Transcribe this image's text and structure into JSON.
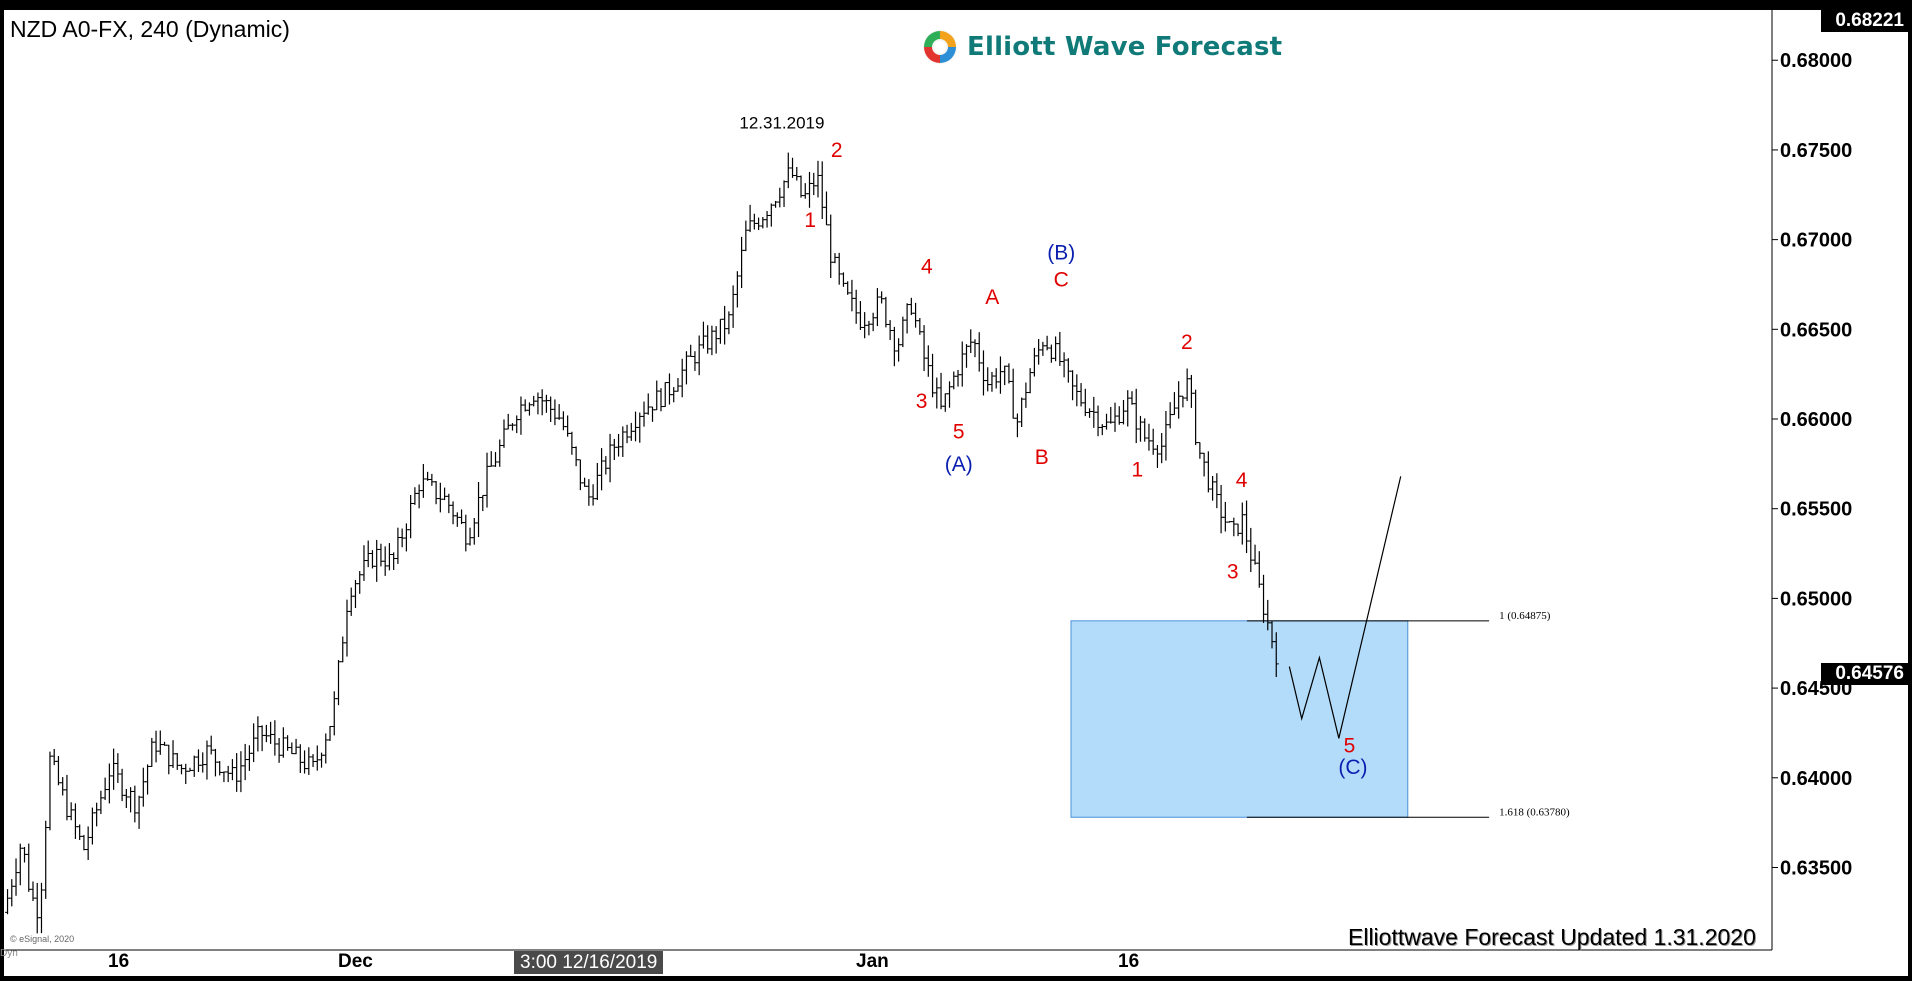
{
  "window": {
    "symbol_title": "NZD A0-FX, 240 (Dynamic)",
    "logo_text": "Elliott Wave Forecast",
    "updated_text": "Elliottwave Forecast Updated 1.31.2020",
    "copyright": "© eSignal, 2020",
    "dyn_label": "Dyn",
    "cursor_label": "3:00 12/16/2019",
    "colors": {
      "background": "#000000",
      "plot": "#ffffff",
      "bars": "#000000",
      "wave_red": "#e00000",
      "wave_blue": "#0a1fb0",
      "target_box": "#b3dcfb",
      "target_border": "#4a90d9"
    },
    "icons": [
      "logo-swirl-icon"
    ]
  },
  "chart_data": {
    "type": "ohlc",
    "timeframe": "240",
    "x_tick_labels": [
      "16",
      "Dec",
      "Jan",
      "16"
    ],
    "y_ticks": [
      0.635,
      0.64,
      0.645,
      0.65,
      0.655,
      0.66,
      0.665,
      0.67,
      0.675,
      0.68
    ],
    "y_tick_labels": [
      "0.63500",
      "0.64000",
      "0.64500",
      "0.65000",
      "0.65500",
      "0.66000",
      "0.66500",
      "0.67000",
      "0.67500",
      "0.68000"
    ],
    "ylim": [
      0.6304,
      0.6828
    ],
    "price_badges": [
      {
        "label": "0.68221",
        "value": 0.68221
      },
      {
        "label": "0.64576",
        "value": 0.64576
      }
    ],
    "date_annotation": {
      "text": "12.31.2019",
      "x": 0.44,
      "y": 0.6762
    },
    "price_path": [
      [
        0.0,
        0.6325
      ],
      [
        0.01,
        0.6365
      ],
      [
        0.015,
        0.6335
      ],
      [
        0.02,
        0.6325
      ],
      [
        0.026,
        0.641
      ],
      [
        0.035,
        0.6385
      ],
      [
        0.045,
        0.636
      ],
      [
        0.06,
        0.6405
      ],
      [
        0.075,
        0.6385
      ],
      [
        0.085,
        0.642
      ],
      [
        0.1,
        0.6405
      ],
      [
        0.115,
        0.6415
      ],
      [
        0.13,
        0.64
      ],
      [
        0.145,
        0.6425
      ],
      [
        0.16,
        0.6415
      ],
      [
        0.175,
        0.6405
      ],
      [
        0.186,
        0.6435
      ],
      [
        0.195,
        0.6505
      ],
      [
        0.21,
        0.6525
      ],
      [
        0.22,
        0.652
      ],
      [
        0.235,
        0.6565
      ],
      [
        0.25,
        0.6555
      ],
      [
        0.262,
        0.6535
      ],
      [
        0.272,
        0.6565
      ],
      [
        0.29,
        0.6605
      ],
      [
        0.3,
        0.6615
      ],
      [
        0.315,
        0.66
      ],
      [
        0.33,
        0.6555
      ],
      [
        0.345,
        0.6585
      ],
      [
        0.36,
        0.6605
      ],
      [
        0.375,
        0.6615
      ],
      [
        0.39,
        0.6635
      ],
      [
        0.41,
        0.6655
      ],
      [
        0.42,
        0.6705
      ],
      [
        0.43,
        0.6715
      ],
      [
        0.445,
        0.6738
      ],
      [
        0.452,
        0.6722
      ],
      [
        0.46,
        0.6735
      ],
      [
        0.468,
        0.669
      ],
      [
        0.475,
        0.667
      ],
      [
        0.485,
        0.6655
      ],
      [
        0.496,
        0.6665
      ],
      [
        0.505,
        0.664
      ],
      [
        0.513,
        0.6665
      ],
      [
        0.52,
        0.6635
      ],
      [
        0.53,
        0.6605
      ],
      [
        0.54,
        0.663
      ],
      [
        0.548,
        0.6645
      ],
      [
        0.556,
        0.662
      ],
      [
        0.565,
        0.6628
      ],
      [
        0.573,
        0.6598
      ],
      [
        0.58,
        0.6625
      ],
      [
        0.588,
        0.6645
      ],
      [
        0.596,
        0.6635
      ],
      [
        0.605,
        0.6615
      ],
      [
        0.615,
        0.6605
      ],
      [
        0.625,
        0.6595
      ],
      [
        0.635,
        0.661
      ],
      [
        0.645,
        0.659
      ],
      [
        0.655,
        0.6585
      ],
      [
        0.665,
        0.6615
      ],
      [
        0.67,
        0.662
      ],
      [
        0.675,
        0.6585
      ],
      [
        0.685,
        0.6555
      ],
      [
        0.695,
        0.6535
      ],
      [
        0.7,
        0.6545
      ],
      [
        0.71,
        0.6505
      ],
      [
        0.715,
        0.6485
      ],
      [
        0.72,
        0.6468
      ]
    ],
    "projection": [
      [
        0.727,
        0.6462
      ],
      [
        0.734,
        0.6433
      ],
      [
        0.744,
        0.6467
      ],
      [
        0.755,
        0.6422
      ],
      [
        0.79,
        0.6568
      ]
    ],
    "target_box": {
      "x_start": 0.6035,
      "x_end": 0.794,
      "y_high": 0.64875,
      "y_low": 0.6378
    },
    "fib_levels": [
      {
        "label": "1 (0.64875)",
        "value": 0.64875
      },
      {
        "label": "1.618 (0.63780)",
        "value": 0.6378
      }
    ],
    "wave_labels": [
      {
        "text": "2",
        "x": 0.471,
        "y": 0.6746,
        "color": "red"
      },
      {
        "text": "1",
        "x": 0.456,
        "y": 0.6707,
        "color": "red"
      },
      {
        "text": "4",
        "x": 0.522,
        "y": 0.6681,
        "color": "red"
      },
      {
        "text": "3",
        "x": 0.519,
        "y": 0.6606,
        "color": "red"
      },
      {
        "text": "5",
        "x": 0.54,
        "y": 0.6589,
        "color": "red"
      },
      {
        "text": "(A)",
        "x": 0.54,
        "y": 0.6571,
        "color": "blue"
      },
      {
        "text": "A",
        "x": 0.559,
        "y": 0.6664,
        "color": "red"
      },
      {
        "text": "B",
        "x": 0.587,
        "y": 0.6575,
        "color": "red"
      },
      {
        "text": "C",
        "x": 0.598,
        "y": 0.6674,
        "color": "red"
      },
      {
        "text": "(B)",
        "x": 0.598,
        "y": 0.6689,
        "color": "blue"
      },
      {
        "text": "2",
        "x": 0.669,
        "y": 0.6639,
        "color": "red"
      },
      {
        "text": "1",
        "x": 0.641,
        "y": 0.6568,
        "color": "red"
      },
      {
        "text": "4",
        "x": 0.7,
        "y": 0.6562,
        "color": "red"
      },
      {
        "text": "3",
        "x": 0.695,
        "y": 0.6511,
        "color": "red"
      },
      {
        "text": "5",
        "x": 0.761,
        "y": 0.6414,
        "color": "red"
      },
      {
        "text": "(C)",
        "x": 0.763,
        "y": 0.6402,
        "color": "blue"
      }
    ]
  }
}
